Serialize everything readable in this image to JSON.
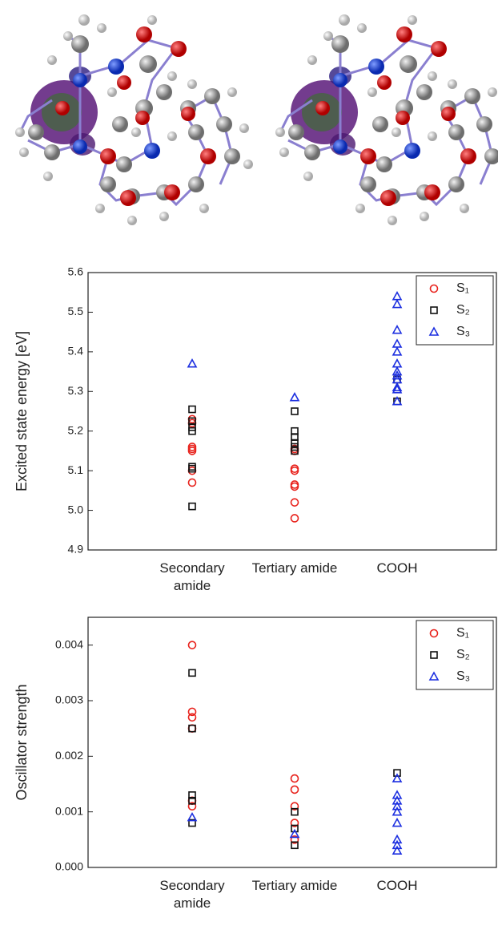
{
  "chart_data": [
    {
      "type": "scatter",
      "ylabel": "Excited state energy [eV]",
      "categories": [
        "Secondary amide",
        "Tertiary amide",
        "COOH"
      ],
      "ylim": [
        4.9,
        5.6
      ],
      "yticks": [
        4.9,
        {
          "value": 5,
          "label": "5.0"
        },
        5.1,
        5.2,
        5.3,
        5.4,
        5.5,
        5.6
      ],
      "legend": "upper right",
      "series": [
        {
          "name": "S₁",
          "color": "#e8221c",
          "marker": "circle",
          "values": [
            [
              5.07,
              5.1,
              5.15,
              5.155,
              5.16,
              5.22,
              5.23
            ],
            [
              4.98,
              5.02,
              5.06,
              5.065,
              5.1,
              5.105,
              5.15,
              5.155
            ],
            []
          ]
        },
        {
          "name": "S₂",
          "color": "#111111",
          "marker": "square",
          "values": [
            [
              5.01,
              5.105,
              5.11,
              5.2,
              5.21,
              5.225,
              5.255
            ],
            [
              5.15,
              5.16,
              5.17,
              5.185,
              5.2,
              5.25
            ],
            [
              5.275,
              5.33
            ]
          ]
        },
        {
          "name": "S₃",
          "color": "#1c2fe0",
          "marker": "triangle",
          "values": [
            [
              5.37
            ],
            [
              5.285
            ],
            [
              5.275,
              5.305,
              5.31,
              5.33,
              5.34,
              5.35,
              5.37,
              5.4,
              5.42,
              5.455,
              5.52,
              5.54
            ]
          ]
        }
      ]
    },
    {
      "type": "scatter",
      "ylabel": "Oscillator strength",
      "categories": [
        "Secondary amide",
        "Tertiary amide",
        "COOH"
      ],
      "ylim": [
        0,
        0.0045
      ],
      "yticks": [
        {
          "value": 0,
          "label": "0.000"
        },
        {
          "value": 0.001,
          "label": "0.001"
        },
        {
          "value": 0.002,
          "label": "0.002"
        },
        {
          "value": 0.003,
          "label": "0.003"
        },
        {
          "value": 0.004,
          "label": "0.004"
        }
      ],
      "legend": "upper right",
      "series": [
        {
          "name": "S₁",
          "color": "#e8221c",
          "marker": "circle",
          "values": [
            [
              0.004,
              0.0028,
              0.0027,
              0.0025,
              0.0012,
              0.0011
            ],
            [
              0.0016,
              0.0014,
              0.0011,
              0.0008,
              0.0005
            ],
            []
          ]
        },
        {
          "name": "S₂",
          "color": "#111111",
          "marker": "square",
          "values": [
            [
              0.0035,
              0.0025,
              0.0013,
              0.0012,
              0.0008
            ],
            [
              0.001,
              0.0007,
              0.0004
            ],
            [
              0.0017
            ]
          ]
        },
        {
          "name": "S₃",
          "color": "#1c2fe0",
          "marker": "triangle",
          "values": [
            [
              0.0009
            ],
            [
              0.0006
            ],
            [
              0.0016,
              0.0013,
              0.0012,
              0.0011,
              0.001,
              0.0008,
              0.0005,
              0.0004,
              0.0003
            ]
          ]
        }
      ]
    }
  ]
}
